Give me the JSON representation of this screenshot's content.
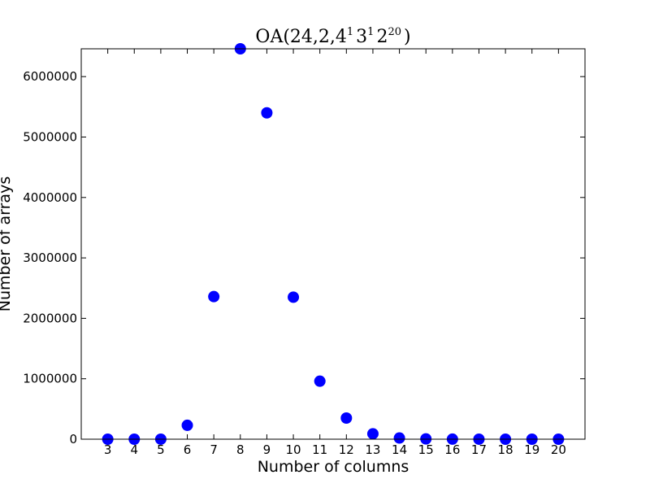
{
  "chart_data": {
    "type": "scatter",
    "title": "OA(24,2,4^1 3^1 2^20)",
    "title_parts": {
      "prefix": "OA(24,2,4",
      "exp1": "1",
      "mid1": "3",
      "exp2": "1",
      "mid2": "2",
      "exp3": "20",
      "suffix": ")"
    },
    "xlabel": "Number of columns",
    "ylabel": "Number of arrays",
    "xlim": [
      2,
      21
    ],
    "ylim": [
      0,
      6460000
    ],
    "x_ticks": [
      3,
      4,
      5,
      6,
      7,
      8,
      9,
      10,
      11,
      12,
      13,
      14,
      15,
      16,
      17,
      18,
      19,
      20
    ],
    "y_ticks": [
      0,
      1000000,
      2000000,
      3000000,
      4000000,
      5000000,
      6000000
    ],
    "grid": false,
    "marker_color": "#0000ff",
    "series": [
      {
        "x": [
          3,
          4,
          5,
          6,
          7,
          8,
          9,
          10,
          11,
          12,
          13,
          14,
          15,
          16,
          17,
          18,
          19,
          20
        ],
        "y": [
          2,
          10,
          200,
          230000,
          2360000,
          6460000,
          5400000,
          2350000,
          960000,
          350000,
          90000,
          20000,
          5000,
          1000,
          200,
          50,
          10,
          2
        ]
      }
    ]
  }
}
